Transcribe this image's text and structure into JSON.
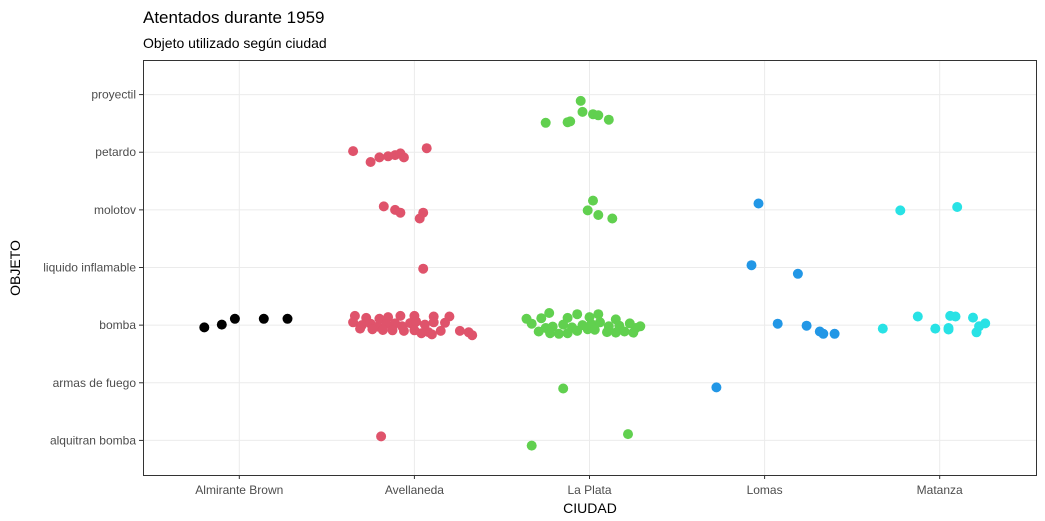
{
  "chart_data": {
    "type": "scatter",
    "title": "Atentados durante 1959",
    "subtitle": "Objeto utilizado según ciudad",
    "xlabel": "CIUDAD",
    "ylabel": "OBJETO",
    "x_categories": [
      "Almirante Brown",
      "Avellaneda",
      "La Plata",
      "Lomas",
      "Matanza"
    ],
    "y_categories": [
      "alquitran bomba",
      "armas de fuego",
      "bomba",
      "liquido inflamable",
      "molotov",
      "petardo",
      "proyectil"
    ],
    "grid": true,
    "legend": "none",
    "series": [
      {
        "x": "Almirante Brown",
        "color": "#000000",
        "points": [
          [
            "Almirante Brown",
            "bomba",
            -0.05,
            0.22
          ],
          [
            "Almirante Brown",
            "bomba",
            -0.4,
            -0.08
          ],
          [
            "Almirante Brown",
            "bomba",
            -0.2,
            0.02
          ],
          [
            "Almirante Brown",
            "bomba",
            0.28,
            0.22
          ],
          [
            "Almirante Brown",
            "bomba",
            0.55,
            0.22
          ]
        ]
      },
      {
        "x": "Avellaneda",
        "color": "#df536b",
        "points": [
          [
            "Avellaneda",
            "petardo",
            -0.7,
            0.04
          ],
          [
            "Avellaneda",
            "petardo",
            -0.5,
            -0.34
          ],
          [
            "Avellaneda",
            "petardo",
            -0.4,
            -0.18
          ],
          [
            "Avellaneda",
            "petardo",
            -0.3,
            -0.14
          ],
          [
            "Avellaneda",
            "petardo",
            -0.22,
            -0.1
          ],
          [
            "Avellaneda",
            "petardo",
            -0.16,
            -0.04
          ],
          [
            "Avellaneda",
            "petardo",
            -0.12,
            -0.18
          ],
          [
            "Avellaneda",
            "petardo",
            0.14,
            0.14
          ],
          [
            "Avellaneda",
            "molotov",
            -0.35,
            0.12
          ],
          [
            "Avellaneda",
            "molotov",
            -0.22,
            0
          ],
          [
            "Avellaneda",
            "molotov",
            -0.16,
            -0.1
          ],
          [
            "Avellaneda",
            "molotov",
            0.1,
            -0.1
          ],
          [
            "Avellaneda",
            "molotov",
            0.06,
            -0.3
          ],
          [
            "Avellaneda",
            "liquido inflamable",
            0.1,
            -0.04
          ],
          [
            "Avellaneda",
            "alquitran bomba",
            -0.38,
            0.14
          ],
          [
            "Avellaneda",
            "bomba",
            -0.68,
            0.32
          ],
          [
            "Avellaneda",
            "bomba",
            -0.55,
            0.25
          ],
          [
            "Avellaneda",
            "bomba",
            -0.4,
            0.22
          ],
          [
            "Avellaneda",
            "bomba",
            -0.3,
            0.28
          ],
          [
            "Avellaneda",
            "bomba",
            -0.16,
            0.32
          ],
          [
            "Avellaneda",
            "bomba",
            0,
            0.32
          ],
          [
            "Avellaneda",
            "bomba",
            0.22,
            0.3
          ],
          [
            "Avellaneda",
            "bomba",
            0.4,
            0.3
          ],
          [
            "Avellaneda",
            "bomba",
            -0.7,
            0.1
          ],
          [
            "Avellaneda",
            "bomba",
            -0.6,
            0.0
          ],
          [
            "Avellaneda",
            "bomba",
            -0.5,
            0.05
          ],
          [
            "Avellaneda",
            "bomba",
            -0.42,
            -0.05
          ],
          [
            "Avellaneda",
            "bomba",
            -0.32,
            0.04
          ],
          [
            "Avellaneda",
            "bomba",
            -0.22,
            0.06
          ],
          [
            "Avellaneda",
            "bomba",
            -0.14,
            -0.04
          ],
          [
            "Avellaneda",
            "bomba",
            -0.05,
            0.07
          ],
          [
            "Avellaneda",
            "bomba",
            0.02,
            0.12
          ],
          [
            "Avellaneda",
            "bomba",
            0.12,
            0.02
          ],
          [
            "Avellaneda",
            "bomba",
            0.22,
            0.1
          ],
          [
            "Avellaneda",
            "bomba",
            0.35,
            0.08
          ],
          [
            "Avellaneda",
            "bomba",
            -0.62,
            -0.12
          ],
          [
            "Avellaneda",
            "bomba",
            -0.48,
            -0.14
          ],
          [
            "Avellaneda",
            "bomba",
            -0.36,
            -0.17
          ],
          [
            "Avellaneda",
            "bomba",
            -0.25,
            -0.18
          ],
          [
            "Avellaneda",
            "bomba",
            -0.12,
            -0.2
          ],
          [
            "Avellaneda",
            "bomba",
            0.0,
            -0.18
          ],
          [
            "Avellaneda",
            "bomba",
            0.16,
            -0.24
          ],
          [
            "Avellaneda",
            "bomba",
            0.3,
            -0.2
          ],
          [
            "Avellaneda",
            "bomba",
            0.52,
            -0.2
          ],
          [
            "Avellaneda",
            "bomba",
            0.62,
            -0.25
          ],
          [
            "Avellaneda",
            "bomba",
            0.66,
            -0.35
          ],
          [
            "Avellaneda",
            "bomba",
            0.2,
            -0.32
          ],
          [
            "Avellaneda",
            "bomba",
            0.08,
            -0.28
          ]
        ]
      },
      {
        "x": "La Plata",
        "color": "#61d04f",
        "points": [
          [
            "La Plata",
            "proyectil",
            -0.1,
            -0.22
          ],
          [
            "La Plata",
            "proyectil",
            -0.08,
            -0.6
          ],
          [
            "La Plata",
            "proyectil",
            0.04,
            -0.68
          ],
          [
            "La Plata",
            "proyectil",
            0.1,
            -0.72
          ],
          [
            "La Plata",
            "proyectil",
            -0.22,
            -0.93
          ],
          [
            "La Plata",
            "proyectil",
            -0.25,
            -0.96
          ],
          [
            "La Plata",
            "proyectil",
            -0.5,
            -0.98
          ],
          [
            "La Plata",
            "proyectil",
            0.22,
            -0.87
          ],
          [
            "La Plata",
            "molotov",
            0.04,
            0.32
          ],
          [
            "La Plata",
            "molotov",
            -0.02,
            -0.02
          ],
          [
            "La Plata",
            "molotov",
            0.1,
            -0.18
          ],
          [
            "La Plata",
            "molotov",
            0.26,
            -0.3
          ],
          [
            "La Plata",
            "armas de fuego",
            -0.3,
            -0.2
          ],
          [
            "La Plata",
            "alquitran bomba",
            -0.66,
            -0.18
          ],
          [
            "La Plata",
            "alquitran bomba",
            0.44,
            0.22
          ],
          [
            "La Plata",
            "bomba",
            -0.72,
            0.22
          ],
          [
            "La Plata",
            "bomba",
            -0.55,
            0.24
          ],
          [
            "La Plata",
            "bomba",
            -0.46,
            0.42
          ],
          [
            "La Plata",
            "bomba",
            -0.14,
            0.38
          ],
          [
            "La Plata",
            "bomba",
            0.1,
            0.38
          ],
          [
            "La Plata",
            "bomba",
            0.3,
            0.2
          ],
          [
            "La Plata",
            "bomba",
            0.0,
            0.28
          ],
          [
            "La Plata",
            "bomba",
            -0.25,
            0.25
          ],
          [
            "La Plata",
            "bomba",
            -0.66,
            0.05
          ],
          [
            "La Plata",
            "bomba",
            -0.5,
            -0.1
          ],
          [
            "La Plata",
            "bomba",
            -0.42,
            -0.05
          ],
          [
            "La Plata",
            "bomba",
            -0.3,
            0.02
          ],
          [
            "La Plata",
            "bomba",
            -0.2,
            -0.08
          ],
          [
            "La Plata",
            "bomba",
            -0.08,
            0.0
          ],
          [
            "La Plata",
            "bomba",
            0.02,
            0.04
          ],
          [
            "La Plata",
            "bomba",
            0.12,
            0.1
          ],
          [
            "La Plata",
            "bomba",
            0.22,
            -0.04
          ],
          [
            "La Plata",
            "bomba",
            0.34,
            -0.02
          ],
          [
            "La Plata",
            "bomba",
            0.46,
            0.06
          ],
          [
            "La Plata",
            "bomba",
            0.58,
            -0.04
          ],
          [
            "La Plata",
            "bomba",
            -0.58,
            -0.22
          ],
          [
            "La Plata",
            "bomba",
            -0.45,
            -0.28
          ],
          [
            "La Plata",
            "bomba",
            -0.35,
            -0.3
          ],
          [
            "La Plata",
            "bomba",
            -0.25,
            -0.28
          ],
          [
            "La Plata",
            "bomba",
            -0.14,
            -0.2
          ],
          [
            "La Plata",
            "bomba",
            -0.02,
            -0.14
          ],
          [
            "La Plata",
            "bomba",
            0.06,
            -0.16
          ],
          [
            "La Plata",
            "bomba",
            0.2,
            -0.24
          ],
          [
            "La Plata",
            "bomba",
            0.3,
            -0.26
          ],
          [
            "La Plata",
            "bomba",
            0.4,
            -0.22
          ],
          [
            "La Plata",
            "bomba",
            0.5,
            -0.26
          ],
          [
            "La Plata",
            "bomba",
            0.53,
            -0.1
          ]
        ]
      },
      {
        "x": "Lomas",
        "color": "#2297e6",
        "points": [
          [
            "Lomas",
            "molotov",
            -0.07,
            0.22
          ],
          [
            "Lomas",
            "liquido inflamable",
            -0.15,
            0.08
          ],
          [
            "Lomas",
            "liquido inflamable",
            0.38,
            -0.22
          ],
          [
            "Lomas",
            "armas de fuego",
            -0.55,
            -0.16
          ],
          [
            "Lomas",
            "bomba",
            0.15,
            0.05
          ],
          [
            "Lomas",
            "bomba",
            0.48,
            -0.02
          ],
          [
            "Lomas",
            "bomba",
            0.63,
            -0.22
          ],
          [
            "Lomas",
            "bomba",
            0.67,
            -0.3
          ],
          [
            "Lomas",
            "bomba",
            0.8,
            -0.3
          ]
        ]
      },
      {
        "x": "Matanza",
        "color": "#28e2e5",
        "points": [
          [
            "Matanza",
            "molotov",
            -0.45,
            -0.02
          ],
          [
            "Matanza",
            "molotov",
            0.2,
            0.1
          ],
          [
            "Matanza",
            "bomba",
            -0.65,
            -0.12
          ],
          [
            "Matanza",
            "bomba",
            -0.25,
            0.3
          ],
          [
            "Matanza",
            "bomba",
            -0.05,
            -0.12
          ],
          [
            "Matanza",
            "bomba",
            0.12,
            0.32
          ],
          [
            "Matanza",
            "bomba",
            0.18,
            0.3
          ],
          [
            "Matanza",
            "bomba",
            0.1,
            -0.1
          ],
          [
            "Matanza",
            "bomba",
            0.1,
            -0.15
          ],
          [
            "Matanza",
            "bomba",
            0.38,
            0.26
          ],
          [
            "Matanza",
            "bomba",
            0.42,
            -0.25
          ],
          [
            "Matanza",
            "bomba",
            0.45,
            -0.04
          ],
          [
            "Matanza",
            "bomba",
            0.52,
            0.06
          ]
        ]
      }
    ]
  }
}
